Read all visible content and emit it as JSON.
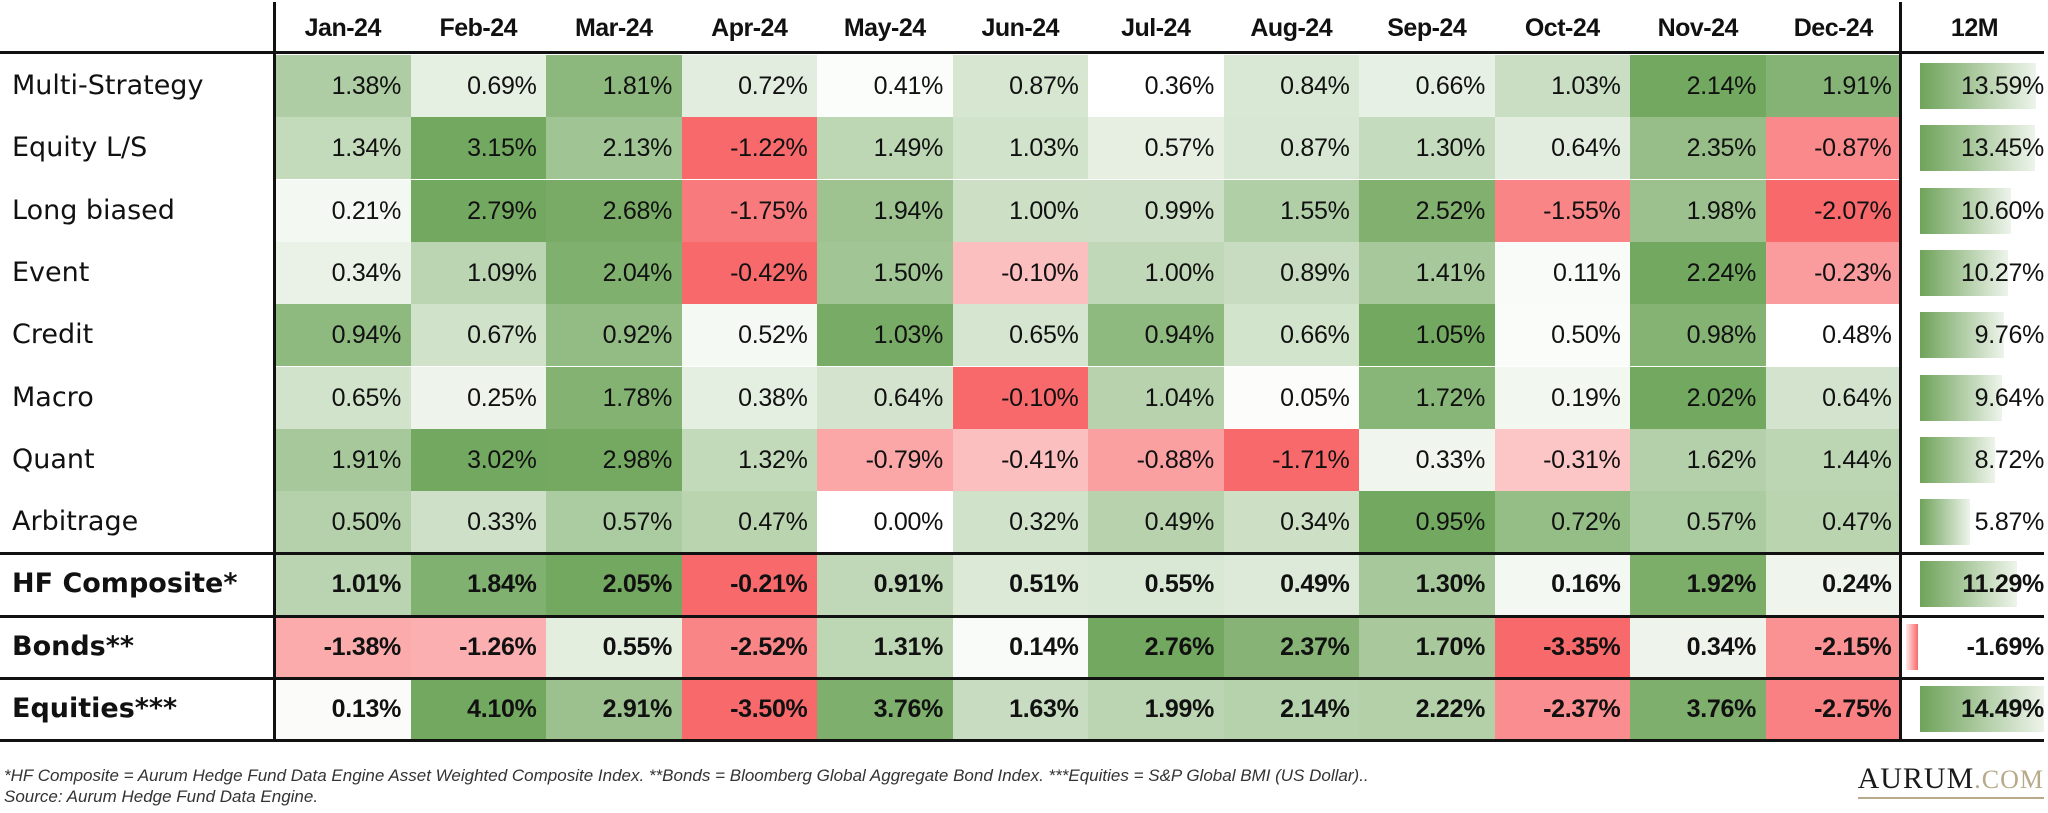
{
  "colors": {
    "green_max": "#73a860",
    "red_min": "#f8696b",
    "white_mid": "#ffffff",
    "bar_green": "#6fa35a",
    "bar_red": "#f8696b",
    "logo_gold": "#b7a98a"
  },
  "header": {
    "months": [
      "Jan-24",
      "Feb-24",
      "Mar-24",
      "Apr-24",
      "May-24",
      "Jun-24",
      "Jul-24",
      "Aug-24",
      "Sep-24",
      "Oct-24",
      "Nov-24",
      "Dec-24"
    ],
    "total_label": "12M"
  },
  "rows": [
    {
      "label": "Multi-Strategy",
      "bold": false,
      "values": [
        "1.38%",
        "0.69%",
        "1.81%",
        "0.72%",
        "0.41%",
        "0.87%",
        "0.36%",
        "0.84%",
        "0.66%",
        "1.03%",
        "2.14%",
        "1.91%"
      ],
      "total": "13.59%"
    },
    {
      "label": "Equity L/S",
      "bold": false,
      "values": [
        "1.34%",
        "3.15%",
        "2.13%",
        "-1.22%",
        "1.49%",
        "1.03%",
        "0.57%",
        "0.87%",
        "1.30%",
        "0.64%",
        "2.35%",
        "-0.87%"
      ],
      "total": "13.45%"
    },
    {
      "label": "Long biased",
      "bold": false,
      "values": [
        "0.21%",
        "2.79%",
        "2.68%",
        "-1.75%",
        "1.94%",
        "1.00%",
        "0.99%",
        "1.55%",
        "2.52%",
        "-1.55%",
        "1.98%",
        "-2.07%"
      ],
      "total": "10.60%"
    },
    {
      "label": "Event",
      "bold": false,
      "values": [
        "0.34%",
        "1.09%",
        "2.04%",
        "-0.42%",
        "1.50%",
        "-0.10%",
        "1.00%",
        "0.89%",
        "1.41%",
        "0.11%",
        "2.24%",
        "-0.23%"
      ],
      "total": "10.27%"
    },
    {
      "label": "Credit",
      "bold": false,
      "values": [
        "0.94%",
        "0.67%",
        "0.92%",
        "0.52%",
        "1.03%",
        "0.65%",
        "0.94%",
        "0.66%",
        "1.05%",
        "0.50%",
        "0.98%",
        "0.48%"
      ],
      "total": "9.76%"
    },
    {
      "label": "Macro",
      "bold": false,
      "values": [
        "0.65%",
        "0.25%",
        "1.78%",
        "0.38%",
        "0.64%",
        "-0.10%",
        "1.04%",
        "0.05%",
        "1.72%",
        "0.19%",
        "2.02%",
        "0.64%"
      ],
      "total": "9.64%"
    },
    {
      "label": "Quant",
      "bold": false,
      "values": [
        "1.91%",
        "3.02%",
        "2.98%",
        "1.32%",
        "-0.79%",
        "-0.41%",
        "-0.88%",
        "-1.71%",
        "0.33%",
        "-0.31%",
        "1.62%",
        "1.44%"
      ],
      "total": "8.72%"
    },
    {
      "label": "Arbitrage",
      "bold": false,
      "values": [
        "0.50%",
        "0.33%",
        "0.57%",
        "0.47%",
        "0.00%",
        "0.32%",
        "0.49%",
        "0.34%",
        "0.95%",
        "0.72%",
        "0.57%",
        "0.47%"
      ],
      "total": "5.87%"
    },
    {
      "label": "HF Composite*",
      "bold": true,
      "values": [
        "1.01%",
        "1.84%",
        "2.05%",
        "-0.21%",
        "0.91%",
        "0.51%",
        "0.55%",
        "0.49%",
        "1.30%",
        "0.16%",
        "1.92%",
        "0.24%"
      ],
      "total": "11.29%"
    },
    {
      "label": "Bonds**",
      "bold": true,
      "values": [
        "-1.38%",
        "-1.26%",
        "0.55%",
        "-2.52%",
        "1.31%",
        "0.14%",
        "2.76%",
        "2.37%",
        "1.70%",
        "-3.35%",
        "0.34%",
        "-2.15%"
      ],
      "total": "-1.69%"
    },
    {
      "label": "Equities***",
      "bold": true,
      "values": [
        "0.13%",
        "4.10%",
        "2.91%",
        "-3.50%",
        "3.76%",
        "1.63%",
        "1.99%",
        "2.14%",
        "2.22%",
        "-2.37%",
        "3.76%",
        "-2.75%"
      ],
      "total": "14.49%"
    }
  ],
  "footnotes": {
    "line1": "*HF Composite = Aurum Hedge Fund Data Engine Asset Weighted Composite Index. **Bonds = Bloomberg Global Aggregate Bond Index. ***Equities = S&P Global BMI (US Dollar)..",
    "line2": "Source: Aurum Hedge Fund Data Engine."
  },
  "logo": {
    "main": "AURUM",
    "domain": ".COM"
  },
  "chart_data": {
    "type": "heatmap",
    "title": "",
    "x": [
      "Jan-24",
      "Feb-24",
      "Mar-24",
      "Apr-24",
      "May-24",
      "Jun-24",
      "Jul-24",
      "Aug-24",
      "Sep-24",
      "Oct-24",
      "Nov-24",
      "Dec-24"
    ],
    "y": [
      "Multi-Strategy",
      "Equity L/S",
      "Long biased",
      "Event",
      "Credit",
      "Macro",
      "Quant",
      "Arbitrage",
      "HF Composite*",
      "Bonds**",
      "Equities***"
    ],
    "values": [
      [
        1.38,
        0.69,
        1.81,
        0.72,
        0.41,
        0.87,
        0.36,
        0.84,
        0.66,
        1.03,
        2.14,
        1.91
      ],
      [
        1.34,
        3.15,
        2.13,
        -1.22,
        1.49,
        1.03,
        0.57,
        0.87,
        1.3,
        0.64,
        2.35,
        -0.87
      ],
      [
        0.21,
        2.79,
        2.68,
        -1.75,
        1.94,
        1.0,
        0.99,
        1.55,
        2.52,
        -1.55,
        1.98,
        -2.07
      ],
      [
        0.34,
        1.09,
        2.04,
        -0.42,
        1.5,
        -0.1,
        1.0,
        0.89,
        1.41,
        0.11,
        2.24,
        -0.23
      ],
      [
        0.94,
        0.67,
        0.92,
        0.52,
        1.03,
        0.65,
        0.94,
        0.66,
        1.05,
        0.5,
        0.98,
        0.48
      ],
      [
        0.65,
        0.25,
        1.78,
        0.38,
        0.64,
        -0.1,
        1.04,
        0.05,
        1.72,
        0.19,
        2.02,
        0.64
      ],
      [
        1.91,
        3.02,
        2.98,
        1.32,
        -0.79,
        -0.41,
        -0.88,
        -1.71,
        0.33,
        -0.31,
        1.62,
        1.44
      ],
      [
        0.5,
        0.33,
        0.57,
        0.47,
        0.0,
        0.32,
        0.49,
        0.34,
        0.95,
        0.72,
        0.57,
        0.47
      ],
      [
        1.01,
        1.84,
        2.05,
        -0.21,
        0.91,
        0.51,
        0.55,
        0.49,
        1.3,
        0.16,
        1.92,
        0.24
      ],
      [
        -1.38,
        -1.26,
        0.55,
        -2.52,
        1.31,
        0.14,
        2.76,
        2.37,
        1.7,
        -3.35,
        0.34,
        -2.15
      ],
      [
        0.13,
        4.1,
        2.91,
        -3.5,
        3.76,
        1.63,
        1.99,
        2.14,
        2.22,
        -2.37,
        3.76,
        -2.75
      ]
    ],
    "totals_12m": {
      "label": "12M",
      "values": [
        13.59,
        13.45,
        10.6,
        10.27,
        9.76,
        9.64,
        8.72,
        5.87,
        11.29,
        -1.69,
        14.49
      ]
    },
    "unit": "%",
    "color_scale": {
      "min": "#f8696b",
      "mid": "#ffffff",
      "max": "#73a860"
    }
  }
}
